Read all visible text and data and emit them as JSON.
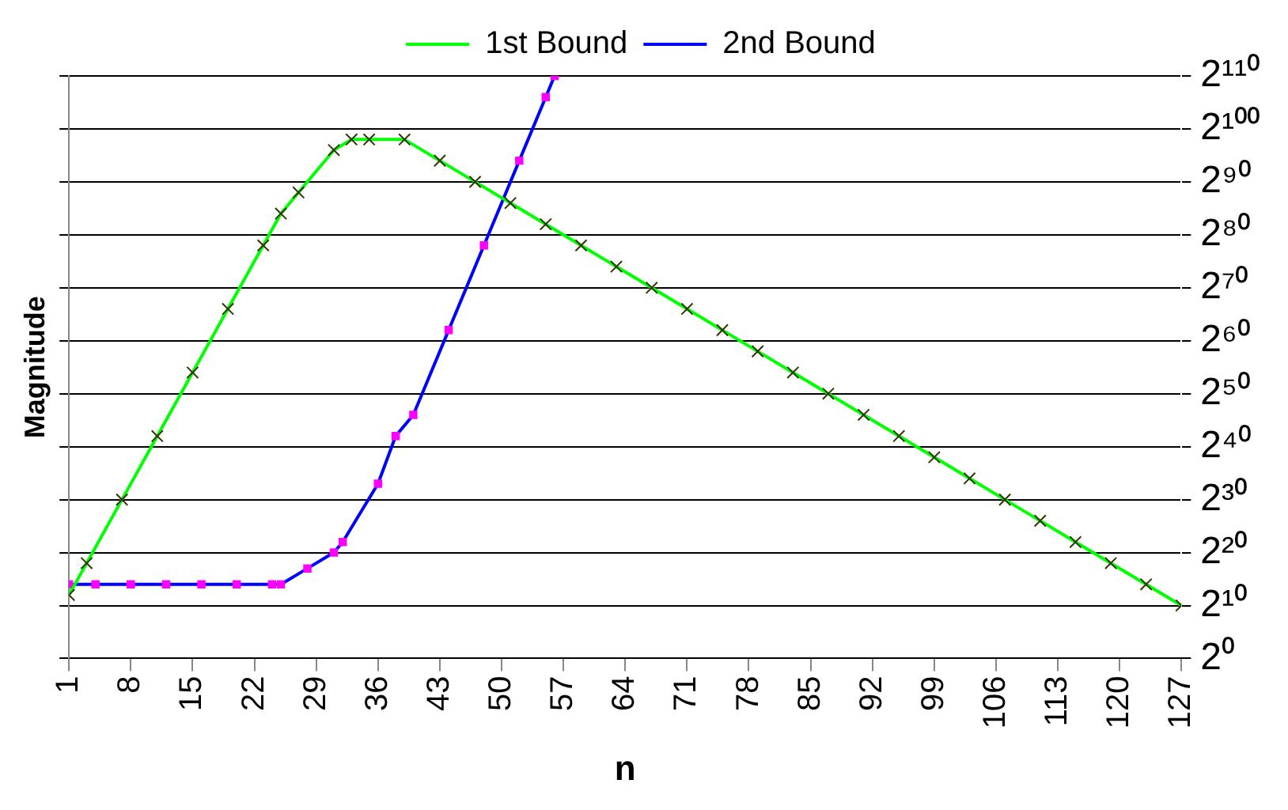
{
  "chart_data": {
    "type": "line",
    "xlabel": "n",
    "ylabel": "Magnitude",
    "log": "y",
    "grid": "y",
    "legend": "top",
    "xlim": [
      1,
      127
    ],
    "xticks": [
      1,
      8,
      15,
      22,
      29,
      36,
      43,
      50,
      57,
      64,
      71,
      78,
      85,
      92,
      99,
      106,
      113,
      120,
      127
    ],
    "ylim": [
      1,
      1.298074214633707e+33
    ],
    "yticks": [
      {
        "value": 1,
        "label": "2⁰"
      },
      {
        "value": 1024,
        "label": "2¹⁰"
      },
      {
        "value": 1048576,
        "label": "2²⁰"
      },
      {
        "value": 1073741824,
        "label": "2³⁰"
      },
      {
        "value": 1099511627776,
        "label": "2⁴⁰"
      },
      {
        "value": 1125899906842624,
        "label": "2⁵⁰"
      },
      {
        "value": 1.152921504606847e+18,
        "label": "2⁶⁰"
      },
      {
        "value": 1.1805916207174113e+21,
        "label": "2⁷⁰"
      },
      {
        "value": 1.2089258196146292e+24,
        "label": "2⁸⁰"
      },
      {
        "value": 1.2379400392853803e+27,
        "label": "2⁹⁰"
      },
      {
        "value": 1.2676506002282294e+30,
        "label": "2¹⁰⁰"
      },
      {
        "value": 1.298074214633707e+33,
        "label": "2¹¹⁰"
      }
    ],
    "series": [
      {
        "name": "1st Bound",
        "color": "#00ff00",
        "marker": "cross",
        "x": [
          1,
          3,
          7,
          11,
          15,
          19,
          23,
          25,
          27,
          31,
          33,
          35,
          39,
          43,
          47,
          51,
          55,
          59,
          63,
          67,
          71,
          75,
          79,
          83,
          87,
          91,
          95,
          99,
          103,
          107,
          111,
          115,
          119,
          123,
          127
        ],
        "values": [
          4096,
          262144,
          1073741824,
          4398046511104,
          1.8014398509481984e+16,
          7.378697629483821e+19,
          3.022314549036573e+23,
          1.9342813113834067e+25,
          3.094850098213451e+26,
          7.922816251426434e+28,
          3.1691265005705735e+29,
          3.1691265005705735e+29,
          3.1691265005705735e+29,
          1.9807040628566084e+28,
          1.2379400392853803e+27,
          7.737125245533627e+25,
          4.835703278458517e+24,
          3.022314549036573e+23,
          1.888946593147858e+22,
          1.1805916207174113e+21,
          7.378697629483821e+19,
          4.611686018427388e+18,
          2.8823037615171174e+17,
          1.8014398509481984e+16,
          1125899906842624,
          70368744177664,
          4398046511104,
          274877906944,
          17179869184,
          1073741824,
          67108864,
          4194304,
          262144,
          16384,
          1024
        ]
      },
      {
        "name": "2nd Bound",
        "color": "#0000ff",
        "marker": "square",
        "x": [
          1,
          4,
          8,
          12,
          16,
          20,
          24,
          25,
          28,
          31,
          32,
          36,
          38,
          40,
          44,
          48,
          52,
          55,
          56
        ],
        "values": [
          16384,
          16384,
          16384,
          16384,
          16384,
          16384,
          16384,
          16384,
          131072,
          1048576,
          4194304,
          8589934592,
          4398046511104,
          70368744177664,
          4.611686018427388e+18,
          3.022314549036573e+23,
          1.9807040628566084e+28,
          8.112963841460668e+31,
          1.298074214633707e+33
        ]
      }
    ]
  }
}
